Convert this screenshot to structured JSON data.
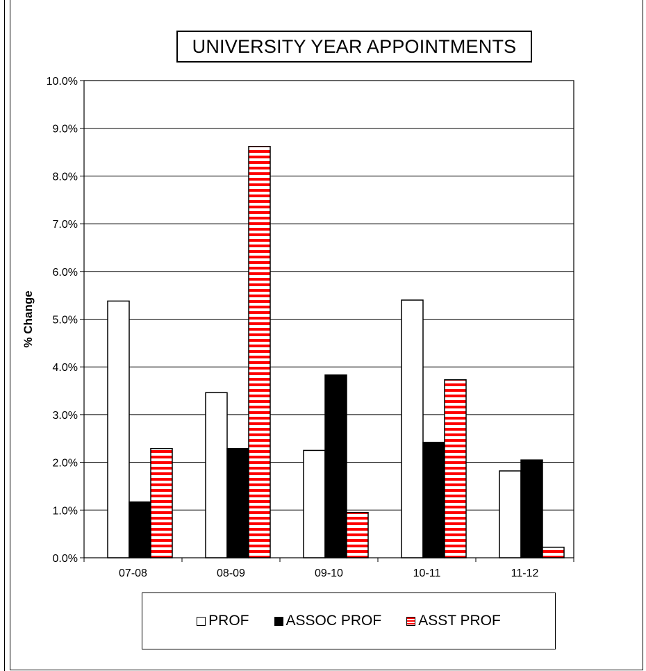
{
  "chart_data": {
    "type": "bar",
    "title": "UNIVERSITY YEAR APPOINTMENTS",
    "xlabel": "",
    "ylabel": "% Change",
    "ylim": [
      0,
      10
    ],
    "yticks": [
      "0.0%",
      "1.0%",
      "2.0%",
      "3.0%",
      "4.0%",
      "5.0%",
      "6.0%",
      "7.0%",
      "8.0%",
      "9.0%",
      "10.0%"
    ],
    "categories": [
      "07-08",
      "08-09",
      "09-10",
      "10-11",
      "11-12"
    ],
    "series": [
      {
        "name": "PROF",
        "values": [
          5.38,
          3.46,
          2.25,
          5.4,
          1.82
        ],
        "fill": "#ffffff",
        "pattern": "solid"
      },
      {
        "name": "ASSOC PROF",
        "values": [
          1.17,
          2.29,
          3.83,
          2.42,
          2.05
        ],
        "fill": "#000000",
        "pattern": "solid"
      },
      {
        "name": "ASST PROF",
        "values": [
          2.29,
          8.62,
          0.95,
          3.73,
          0.22
        ],
        "fill": "#ff0000",
        "pattern": "horizontal-stripes"
      }
    ],
    "grid": true,
    "legend_position": "bottom"
  }
}
